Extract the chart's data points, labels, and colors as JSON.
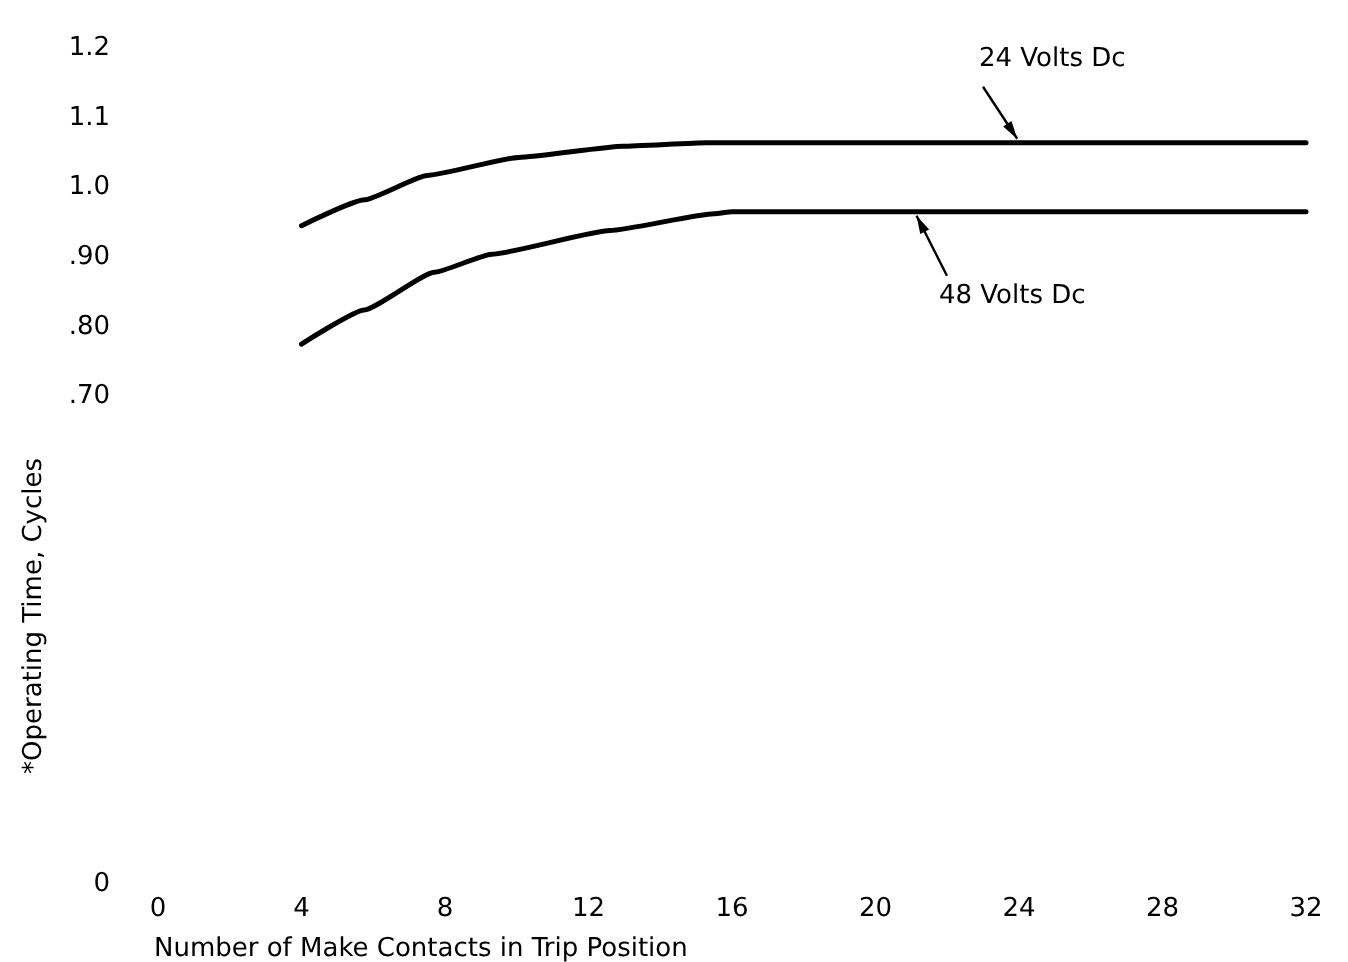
{
  "chart_data": {
    "type": "line",
    "xlabel": "Number of Make Contacts in Trip Position",
    "ylabel": "*Operating Time, Cycles",
    "series": [
      {
        "color": "#000000",
        "x": [
          4,
          5.75,
          7.5,
          10.06,
          12.96,
          15.3,
          16,
          20,
          24,
          28,
          32
        ],
        "values": [
          0.945,
          0.982,
          1.017,
          1.043,
          1.059,
          1.064,
          1.064,
          1.064,
          1.064,
          1.064,
          1.064
        ]
      },
      {
        "color": "#000000",
        "x": [
          4,
          5.75,
          7.7,
          9.3,
          12.6,
          15.5,
          16,
          20,
          24,
          28,
          32
        ],
        "values": [
          0.775,
          0.824,
          0.878,
          0.904,
          0.938,
          0.962,
          0.965,
          0.965,
          0.965,
          0.965,
          0.965
        ]
      }
    ],
    "annotations": [
      {
        "text": "24 Volts Dc",
        "x": 24,
        "y": 1.064
      },
      {
        "text": "48 Volts Dc",
        "x": 21.1,
        "y": 0.965
      }
    ],
    "xlim": [
      0,
      32
    ],
    "xticks": [
      0,
      4,
      8,
      12,
      16,
      20,
      24,
      28,
      32
    ],
    "ylim": [
      0,
      1.2
    ],
    "yticks": [
      0,
      {
        "value": 0.7,
        "label": ".70"
      },
      {
        "value": 0.8,
        "label": ".80"
      },
      {
        "value": 0.9,
        "label": ".90"
      },
      {
        "value": 1.0,
        "label": "1.0"
      },
      {
        "value": 1.1,
        "label": "1.1"
      },
      {
        "value": 1.2,
        "label": "1.2"
      }
    ],
    "grid": false,
    "marker": "none",
    "line_style": "solid"
  }
}
